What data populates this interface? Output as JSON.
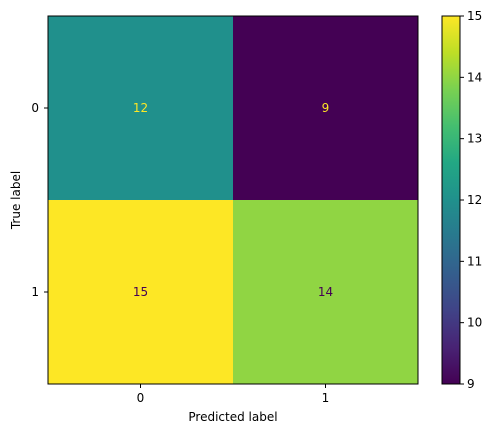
{
  "chart_data": {
    "type": "heatmap",
    "x_categories": [
      "0",
      "1"
    ],
    "y_categories": [
      "0",
      "1"
    ],
    "values": [
      [
        12,
        9
      ],
      [
        15,
        14
      ]
    ],
    "xlabel": "Predicted label",
    "ylabel": "True label",
    "colorbar": {
      "min": 9,
      "max": 15,
      "ticks": [
        "9",
        "10",
        "11",
        "12",
        "13",
        "14",
        "15"
      ]
    },
    "colormap": "viridis"
  }
}
